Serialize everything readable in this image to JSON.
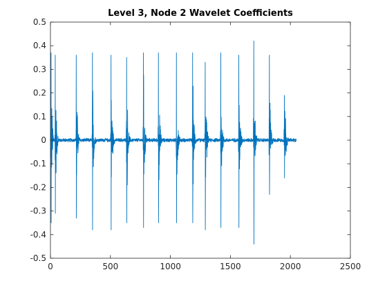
{
  "chart_data": {
    "type": "line",
    "title": "Level 3, Node 2 Wavelet Coefficients",
    "xlabel": "",
    "ylabel": "",
    "xlim": [
      0,
      2500
    ],
    "ylim": [
      -0.5,
      0.5
    ],
    "xticks": [
      0,
      500,
      1000,
      1500,
      2000,
      2500
    ],
    "yticks": [
      -0.5,
      -0.4,
      -0.3,
      -0.2,
      -0.1,
      0,
      0.1,
      0.2,
      0.3,
      0.4,
      0.5
    ],
    "xtick_labels": [
      "0",
      "500",
      "1000",
      "1500",
      "2000",
      "2500"
    ],
    "ytick_labels": [
      "-0.5",
      "-0.4",
      "-0.3",
      "-0.2",
      "-0.1",
      "0",
      "0.1",
      "0.2",
      "0.3",
      "0.4",
      "0.5"
    ],
    "grid": false,
    "series": [
      {
        "color": "#0072BD",
        "n_points": 2050,
        "bursts": [
          {
            "x": 5,
            "max": 0.37,
            "min": -0.35
          },
          {
            "x": 40,
            "max": 0.36,
            "min": -0.31
          },
          {
            "x": 215,
            "max": 0.36,
            "min": -0.33
          },
          {
            "x": 350,
            "max": 0.37,
            "min": -0.38
          },
          {
            "x": 505,
            "max": 0.36,
            "min": -0.38
          },
          {
            "x": 635,
            "max": 0.35,
            "min": -0.35
          },
          {
            "x": 775,
            "max": 0.37,
            "min": -0.37
          },
          {
            "x": 900,
            "max": 0.37,
            "min": -0.35
          },
          {
            "x": 1050,
            "max": 0.37,
            "min": -0.35
          },
          {
            "x": 1185,
            "max": 0.37,
            "min": -0.35
          },
          {
            "x": 1290,
            "max": 0.33,
            "min": -0.38
          },
          {
            "x": 1420,
            "max": 0.37,
            "min": -0.37
          },
          {
            "x": 1570,
            "max": 0.36,
            "min": -0.37
          },
          {
            "x": 1695,
            "max": 0.42,
            "min": -0.44
          },
          {
            "x": 1825,
            "max": 0.36,
            "min": -0.23
          },
          {
            "x": 1950,
            "max": 0.19,
            "min": -0.16
          }
        ]
      }
    ]
  }
}
